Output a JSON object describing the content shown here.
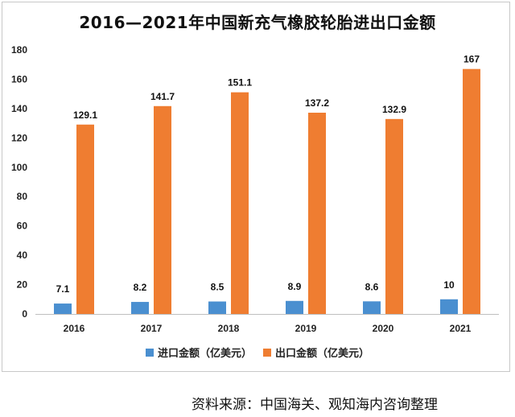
{
  "title": "2016—2021年中国新充气橡胶轮胎进出口金额",
  "source": "资料来源：中国海关、观知海内咨询整理",
  "colors": {
    "import": "#4a8fd0",
    "export": "#ef7d31"
  },
  "chart_data": {
    "type": "bar",
    "title": "2016—2021年中国新充气橡胶轮胎进出口金额",
    "categories": [
      "2016",
      "2017",
      "2018",
      "2019",
      "2020",
      "2021"
    ],
    "series": [
      {
        "name": "进口金额（亿美元）",
        "values": [
          7.1,
          8.2,
          8.5,
          8.9,
          8.6,
          10
        ],
        "labels": [
          "7.1",
          "8.2",
          "8.5",
          "8.9",
          "8.6",
          "10"
        ]
      },
      {
        "name": "出口金额（亿美元）",
        "values": [
          129.1,
          141.7,
          151.1,
          137.2,
          132.9,
          167
        ],
        "labels": [
          "129.1",
          "141.7",
          "151.1",
          "137.2",
          "132.9",
          "167"
        ]
      }
    ],
    "ylim": [
      0,
      180
    ],
    "yticks": [
      "0",
      "20",
      "40",
      "60",
      "80",
      "100",
      "120",
      "140",
      "160",
      "180"
    ],
    "xlabel": "",
    "ylabel": "",
    "grid": false,
    "legend": "bottom"
  }
}
